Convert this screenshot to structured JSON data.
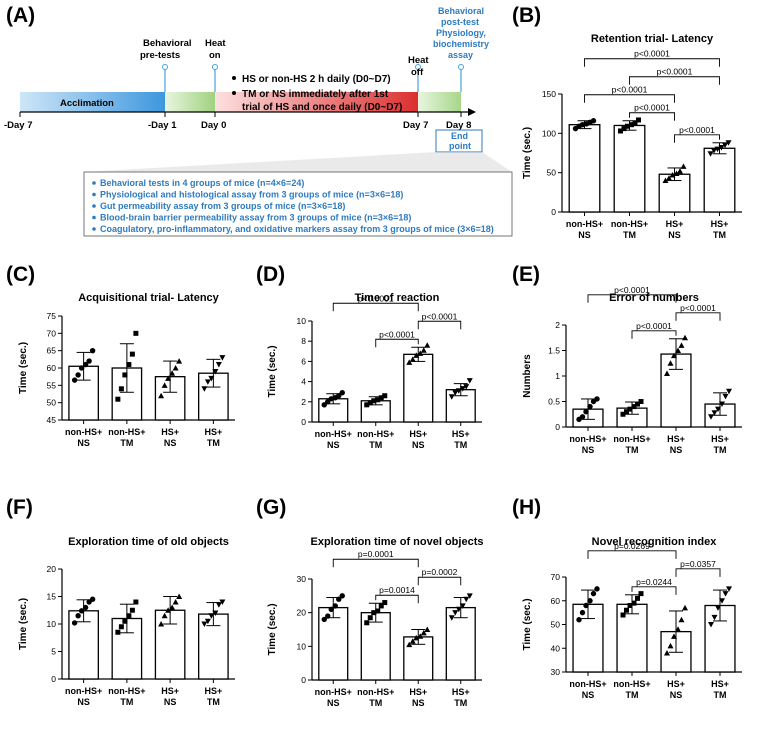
{
  "panel_a": {
    "label": "(A)",
    "acclimation": "Acclimation",
    "days": [
      "-Day 7",
      "-Day 1",
      "Day 0",
      "Day 7",
      "Day 8"
    ],
    "events": [
      "Behavioral",
      "pre-tests",
      "Heat",
      "on",
      "Heat",
      "off"
    ],
    "post_test": [
      "Behavioral",
      "post-test",
      "Physiology,",
      "biochemistry",
      "assay"
    ],
    "notes": [
      "HS or non-HS 2 h daily (D0~D7)",
      "TM or NS immediately after 1st",
      "trial of HS and once daily (D0~D7)"
    ],
    "end_point": [
      "End",
      "point"
    ],
    "bullets": [
      "Behavioral tests in 4 groups of mice (n=4×6=24)",
      "Physiological and histological assay from 3 groups of mice (n=3×6=18)",
      "Gut permeability assay from 3 groups of mice (n=3×6=18)",
      "Blood-brain barrier permeability assay from 3 groups of mice (n=3×6=18)",
      "Coagulatory, pro-inflammatory, and oxidative markers assay from 3 groups of mice (3×6=18)"
    ],
    "colors": {
      "acclimation": "#4a9fe0",
      "pre": "#a8d88a",
      "heat": "#e03030",
      "line": "#4a9fe0",
      "accent": "#2e7bbf"
    }
  },
  "chart_data": [
    {
      "id": "B",
      "label": "(B)",
      "type": "bar",
      "title": "Retention trial- Latency",
      "ylabel": "Time (sec.)",
      "categories": [
        [
          "non-HS+",
          "NS"
        ],
        [
          "non-HS+",
          "TM"
        ],
        [
          "HS+",
          "NS"
        ],
        [
          "HS+",
          "TM"
        ]
      ],
      "values": [
        111,
        110,
        48,
        81
      ],
      "errors": [
        5,
        6,
        8,
        7
      ],
      "ylim": [
        0,
        150
      ],
      "yticks": [
        0,
        50,
        100,
        150
      ],
      "markers": [
        "circle",
        "square",
        "triangle",
        "tri-down"
      ],
      "points": [
        [
          106,
          109,
          111,
          112,
          114,
          116
        ],
        [
          103,
          106,
          109,
          111,
          113,
          117
        ],
        [
          40,
          43,
          47,
          49,
          52,
          58
        ],
        [
          74,
          78,
          80,
          82,
          85,
          88
        ]
      ],
      "comparisons": [
        {
          "a": 0,
          "b": 3,
          "text": "p<0.0001"
        },
        {
          "a": 0,
          "b": 2,
          "text": "p<0.0001"
        },
        {
          "a": 2,
          "b": 3,
          "text": "p<0.0001"
        },
        {
          "a": 1,
          "b": 3,
          "text": "p<0.0001"
        },
        {
          "a": 1,
          "b": 2,
          "text": "p<0.0001"
        }
      ]
    },
    {
      "id": "C",
      "label": "(C)",
      "type": "bar",
      "title": "Acquisitional trial- Latency",
      "ylabel": "Time (sec.)",
      "categories": [
        [
          "non-HS+",
          "NS"
        ],
        [
          "non-HS+",
          "TM"
        ],
        [
          "HS+",
          "NS"
        ],
        [
          "HS+",
          "TM"
        ]
      ],
      "values": [
        60.5,
        60,
        57.5,
        58.5
      ],
      "errors": [
        4,
        7,
        4.5,
        4
      ],
      "ylim": [
        45,
        75
      ],
      "yticks": [
        45,
        50,
        55,
        60,
        65,
        70,
        75
      ],
      "markers": [
        "circle",
        "square",
        "triangle",
        "tri-down"
      ],
      "points": [
        [
          56.5,
          58,
          60,
          61,
          62,
          65
        ],
        [
          51,
          54,
          58,
          61,
          64,
          70
        ],
        [
          52,
          55,
          57,
          58.5,
          60,
          62
        ],
        [
          54,
          56,
          57,
          59,
          61,
          63
        ]
      ],
      "comparisons": []
    },
    {
      "id": "D",
      "label": "(D)",
      "type": "bar",
      "title": "Time of reaction",
      "ylabel": "Time (sec.)",
      "categories": [
        [
          "non-HS+",
          "NS"
        ],
        [
          "non-HS+",
          "TM"
        ],
        [
          "HS+",
          "NS"
        ],
        [
          "HS+",
          "TM"
        ]
      ],
      "values": [
        2.3,
        2.1,
        6.7,
        3.2
      ],
      "errors": [
        0.5,
        0.4,
        0.7,
        0.6
      ],
      "ylim": [
        0,
        10
      ],
      "yticks": [
        0,
        2,
        4,
        6,
        8,
        10
      ],
      "markers": [
        "circle",
        "square",
        "triangle",
        "tri-down"
      ],
      "points": [
        [
          1.7,
          2,
          2.3,
          2.4,
          2.6,
          2.9
        ],
        [
          1.7,
          1.9,
          2.1,
          2.2,
          2.4,
          2.6
        ],
        [
          5.9,
          6.2,
          6.6,
          6.8,
          7.1,
          7.6
        ],
        [
          2.5,
          2.9,
          3.1,
          3.3,
          3.5,
          4.1
        ]
      ],
      "comparisons": [
        {
          "a": 0,
          "b": 2,
          "text": "p<0.0001"
        },
        {
          "a": 1,
          "b": 2,
          "text": "p<0.0001"
        },
        {
          "a": 2,
          "b": 3,
          "text": "p<0.0001"
        }
      ]
    },
    {
      "id": "E",
      "label": "(E)",
      "type": "bar",
      "title": "Error of numbers",
      "ylabel": "Numbers",
      "categories": [
        [
          "non-HS+",
          "NS"
        ],
        [
          "non-HS+",
          "TM"
        ],
        [
          "HS+",
          "NS"
        ],
        [
          "HS+",
          "TM"
        ]
      ],
      "values": [
        0.35,
        0.37,
        1.43,
        0.45
      ],
      "errors": [
        0.2,
        0.12,
        0.3,
        0.22
      ],
      "ylim": [
        0,
        2
      ],
      "yticks": [
        0,
        0.5,
        1,
        1.5,
        2
      ],
      "markers": [
        "circle",
        "square",
        "triangle",
        "tri-down"
      ],
      "points": [
        [
          0.15,
          0.2,
          0.3,
          0.4,
          0.5,
          0.55
        ],
        [
          0.25,
          0.3,
          0.35,
          0.4,
          0.45,
          0.5
        ],
        [
          1.05,
          1.25,
          1.4,
          1.5,
          1.6,
          1.75
        ],
        [
          0.2,
          0.28,
          0.35,
          0.45,
          0.6,
          0.7
        ]
      ],
      "comparisons": [
        {
          "a": 0,
          "b": 2,
          "text": "p<0.0001"
        },
        {
          "a": 1,
          "b": 2,
          "text": "p<0.0001"
        },
        {
          "a": 2,
          "b": 3,
          "text": "p<0.0001"
        }
      ]
    },
    {
      "id": "F",
      "label": "(F)",
      "type": "bar",
      "title": "Exploration time of old objects",
      "ylabel": "Time (sec.)",
      "categories": [
        [
          "non-HS+",
          "NS"
        ],
        [
          "non-HS+",
          "TM"
        ],
        [
          "HS+",
          "NS"
        ],
        [
          "HS+",
          "TM"
        ]
      ],
      "values": [
        12.4,
        11,
        12.5,
        11.8
      ],
      "errors": [
        2,
        2.6,
        2.5,
        2.1
      ],
      "ylim": [
        0,
        20
      ],
      "yticks": [
        0,
        5,
        10,
        15,
        20
      ],
      "markers": [
        "circle",
        "square",
        "triangle",
        "tri-down"
      ],
      "points": [
        [
          10.2,
          11.5,
          12.4,
          13,
          14,
          14.5
        ],
        [
          8.5,
          9.5,
          10.5,
          11.5,
          12.5,
          14
        ],
        [
          10,
          11.5,
          12.5,
          13,
          14,
          15
        ],
        [
          10,
          10.5,
          11.5,
          12,
          13.5,
          14
        ]
      ],
      "comparisons": []
    },
    {
      "id": "G",
      "label": "(G)",
      "type": "bar",
      "title": "Exploration time of novel objects",
      "ylabel": "Time (sec.)",
      "categories": [
        [
          "non-HS+",
          "NS"
        ],
        [
          "non-HS+",
          "TM"
        ],
        [
          "HS+",
          "NS"
        ],
        [
          "HS+",
          "TM"
        ]
      ],
      "values": [
        21.5,
        20,
        12.8,
        21.5
      ],
      "errors": [
        3,
        2.8,
        2.2,
        3
      ],
      "ylim": [
        0,
        30
      ],
      "yticks": [
        0,
        10,
        20,
        30
      ],
      "markers": [
        "circle",
        "square",
        "triangle",
        "tri-down"
      ],
      "points": [
        [
          18,
          19,
          21,
          22,
          24,
          25
        ],
        [
          17,
          18.5,
          20,
          20.5,
          22,
          23
        ],
        [
          10.5,
          11.5,
          12.5,
          13,
          14,
          15
        ],
        [
          18.5,
          20,
          21,
          22,
          24,
          25
        ]
      ],
      "comparisons": [
        {
          "a": 0,
          "b": 2,
          "text": "p=0.0001"
        },
        {
          "a": 1,
          "b": 2,
          "text": "p=0.0014"
        },
        {
          "a": 2,
          "b": 3,
          "text": "p=0.0002"
        }
      ]
    },
    {
      "id": "H",
      "label": "(H)",
      "type": "bar",
      "title": "Novel recognition index",
      "ylabel": "Time (sec.)",
      "categories": [
        [
          "non-HS+",
          "NS"
        ],
        [
          "non-HS+",
          "TM"
        ],
        [
          "HS+",
          "NS"
        ],
        [
          "HS+",
          "TM"
        ]
      ],
      "values": [
        58.5,
        58.5,
        47,
        58
      ],
      "errors": [
        6,
        4,
        8.7,
        6.5
      ],
      "ylim": [
        30,
        70
      ],
      "yticks": [
        30,
        40,
        50,
        60,
        70
      ],
      "markers": [
        "circle",
        "square",
        "triangle",
        "tri-down"
      ],
      "points": [
        [
          52,
          55,
          58,
          60,
          63,
          65
        ],
        [
          54,
          56,
          58,
          59,
          61,
          63
        ],
        [
          38,
          41,
          45,
          48,
          52,
          57
        ],
        [
          50,
          53,
          57,
          60,
          63,
          65
        ]
      ],
      "comparisons": [
        {
          "a": 0,
          "b": 2,
          "text": "p=0.0269"
        },
        {
          "a": 1,
          "b": 2,
          "text": "p=0.0244"
        },
        {
          "a": 2,
          "b": 3,
          "text": "p=0.0357"
        }
      ]
    }
  ]
}
